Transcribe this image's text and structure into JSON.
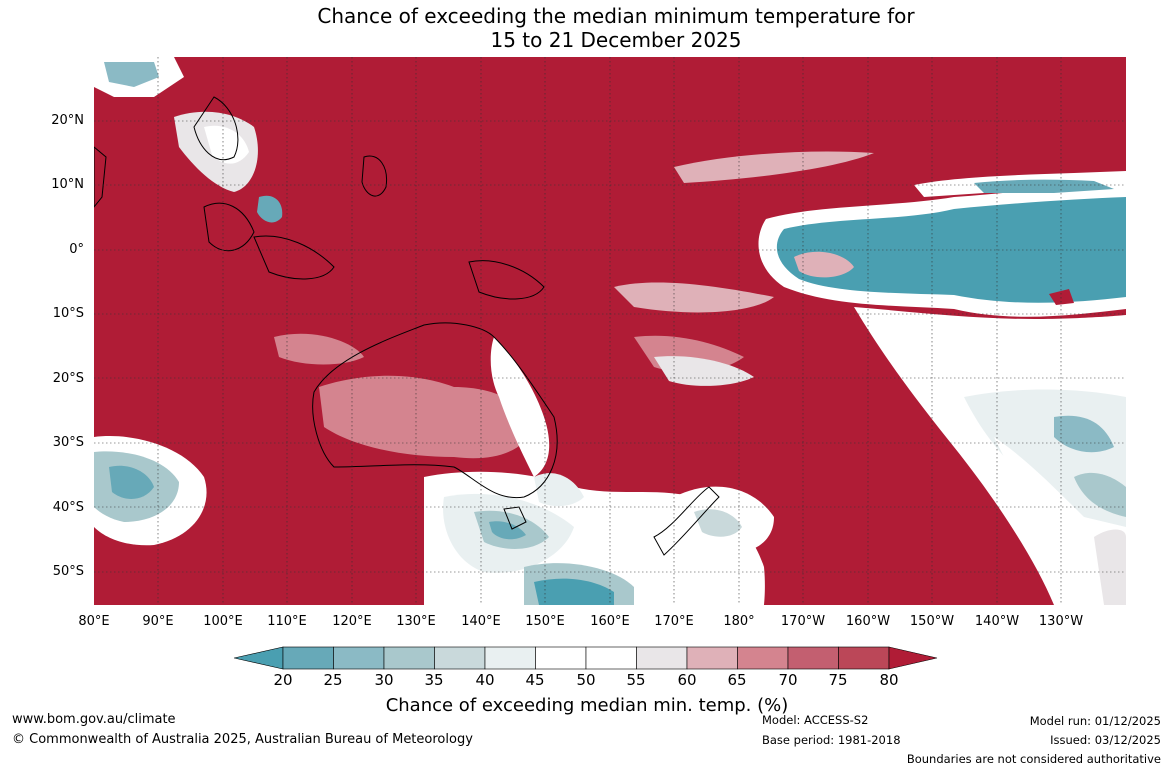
{
  "title_line1": "Chance of exceeding the median minimum temperature for",
  "title_line2": "15 to 21 December 2025",
  "lat_labels": [
    "20°N",
    "10°N",
    "0°",
    "10°S",
    "20°S",
    "30°S",
    "40°S",
    "50°S"
  ],
  "lon_labels": [
    "80°E",
    "90°E",
    "100°E",
    "110°E",
    "120°E",
    "130°E",
    "140°E",
    "150°E",
    "160°E",
    "170°E",
    "180°",
    "170°W",
    "160°W",
    "150°W",
    "140°W",
    "130°W"
  ],
  "colorbar": {
    "ticks": [
      "20",
      "25",
      "30",
      "35",
      "40",
      "45",
      "50",
      "55",
      "60",
      "65",
      "70",
      "75",
      "80"
    ],
    "colors": [
      "#4a9fb1",
      "#67a9b8",
      "#8bbac5",
      "#a9c8cc",
      "#c9d9db",
      "#e9f0f1",
      "#ffffff",
      "#ffffff",
      "#e9e6e8",
      "#dfb1b8",
      "#d4848f",
      "#c35f70",
      "#bb4758",
      "#b01c36"
    ],
    "label": "Chance of exceeding median min. temp. (%)"
  },
  "footer": {
    "website": "www.bom.gov.au/climate",
    "copyright": "© Commonwealth of Australia 2025, Australian Bureau of Meteorology",
    "model": "Model: ACCESS-S2",
    "base_period": "Base period: 1981-2018",
    "model_run": "Model run: 01/12/2025",
    "issued": "Issued: 03/12/2025",
    "disclaimer": "Boundaries are not considered authoritative"
  }
}
